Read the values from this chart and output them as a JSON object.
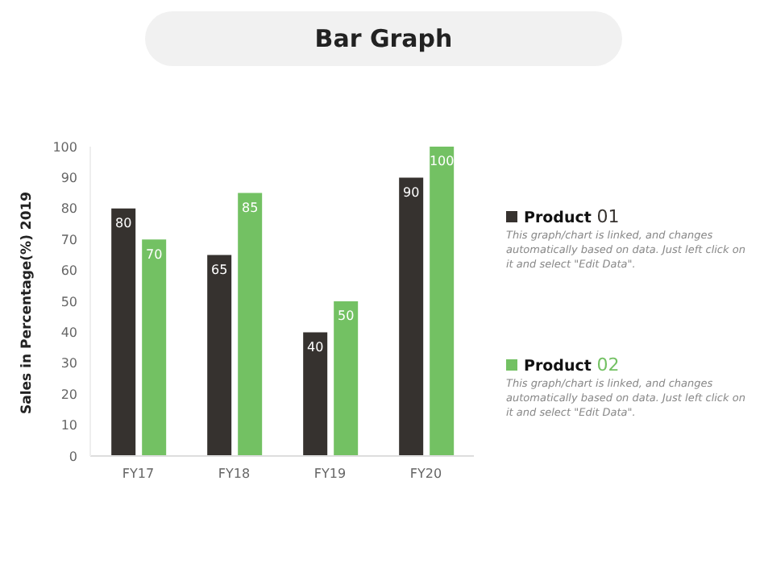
{
  "chart_data": {
    "type": "bar",
    "title": "Bar Graph",
    "ylabel": "Sales in Percentage(%) 2019",
    "categories": [
      "FY17",
      "FY18",
      "FY19",
      "FY20"
    ],
    "series": [
      {
        "name": "Product 01",
        "color": "#36322f",
        "values": [
          80,
          65,
          40,
          90
        ]
      },
      {
        "name": "Product 02",
        "color": "#73c163",
        "values": [
          70,
          85,
          50,
          100
        ]
      }
    ],
    "ylim": [
      0,
      100
    ],
    "yticks": [
      0,
      10,
      20,
      30,
      40,
      50,
      60,
      70,
      80,
      90,
      100
    ],
    "grid": false,
    "legend": "right",
    "data_labels": true,
    "annotations": [
      "This graph/chart is linked, and changes automatically based on data. Just left click on it and select \"Edit Data\".",
      "This graph/chart is linked, and changes automatically based on data. Just left click on it and select \"Edit Data\"."
    ]
  }
}
